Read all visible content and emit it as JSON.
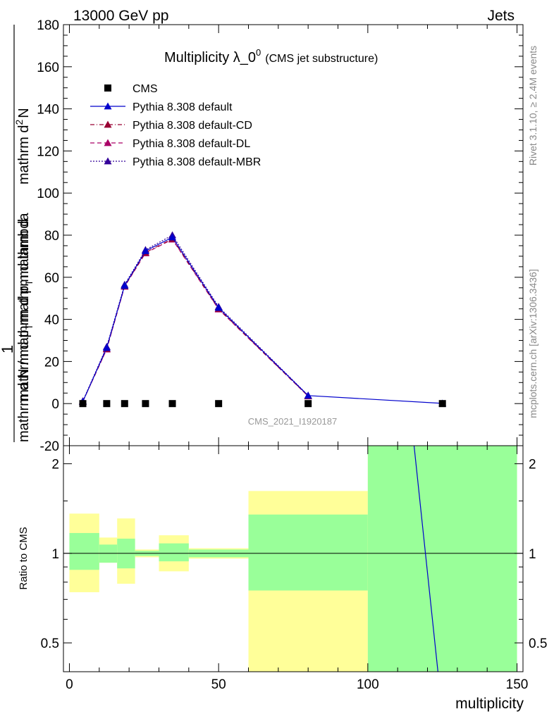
{
  "header": {
    "left": "13000 GeV pp",
    "right": "Jets"
  },
  "side_labels": {
    "rivet": "Rivet 3.1.10, ≥ 2.4M events",
    "mcplots": "mcplots.cern.ch [arXiv:1306.3436]"
  },
  "analysis_id": "CMS_2021_I1920187",
  "chart_data": [
    {
      "type": "line",
      "title_main": "Multiplicity λ_0",
      "title_sup": "0",
      "title_sub": "(CMS jet substructure)",
      "ylabel_parts": {
        "one": "1",
        "denominator": "mathrm d N / mathrm d p",
        "denominator_sub": "T",
        "denominator_tail": "mathrm d",
        "numerator": "mathrm d",
        "numerator_sup": "2",
        "numerator_tail": "N",
        "lower": "mathrm d p",
        "lower_sub": "T",
        "lower_tail": "mathrm d lambda"
      },
      "xlim": [
        -2,
        152
      ],
      "ylim": [
        -20,
        180
      ],
      "yticks": [
        -20,
        0,
        20,
        40,
        60,
        80,
        100,
        120,
        140,
        160,
        180
      ],
      "grid": false,
      "legend_position": "top-left",
      "series": [
        {
          "name": "CMS",
          "marker": "square",
          "color": "#000000",
          "x": [
            4.5,
            12.5,
            18.5,
            25.5,
            34.5,
            50,
            80,
            125
          ],
          "y": [
            0,
            0,
            0,
            0,
            0,
            0,
            0,
            0
          ]
        },
        {
          "name": "Pythia 8.308 default",
          "marker": "triangle",
          "color": "#0000cc",
          "dash": "",
          "x": [
            4.5,
            12.5,
            18.5,
            25.5,
            34.5,
            50,
            80,
            125
          ],
          "y": [
            1.0,
            26.5,
            56.0,
            72.5,
            79.0,
            45.5,
            3.8,
            0.1
          ]
        },
        {
          "name": "Pythia 8.308 default-CD",
          "marker": "triangle",
          "color": "#990033",
          "dash": "6,3,1,3",
          "x": [
            4.5,
            12.5,
            18.5,
            25.5,
            34.5,
            50,
            80
          ],
          "y": [
            1.0,
            26.0,
            55.8,
            71.8,
            78.3,
            45.0,
            3.6
          ]
        },
        {
          "name": "Pythia 8.308 default-DL",
          "marker": "triangle",
          "color": "#aa0066",
          "dash": "6,4",
          "x": [
            4.5,
            12.5,
            18.5,
            25.5,
            34.5,
            50,
            80
          ],
          "y": [
            1.0,
            25.8,
            55.6,
            71.5,
            78.0,
            44.8,
            3.5
          ]
        },
        {
          "name": "Pythia 8.308 default-MBR",
          "marker": "triangle",
          "color": "#330099",
          "dash": "2,2",
          "x": [
            4.5,
            12.5,
            18.5,
            25.5,
            34.5,
            50,
            80
          ],
          "y": [
            1.2,
            27.0,
            56.5,
            73.0,
            80.0,
            46.0,
            3.9
          ]
        }
      ]
    },
    {
      "type": "area",
      "ylabel": "Ratio to CMS",
      "xlabel": "multiplicity",
      "xlim": [
        -2,
        152
      ],
      "ylim": [
        0.4,
        2.3
      ],
      "log_y": true,
      "xticks": [
        0,
        50,
        100,
        150
      ],
      "yticks": [
        0.5,
        1,
        2
      ],
      "yticks_labels": [
        "0.5",
        "1",
        "2"
      ],
      "colors": {
        "inner_band": "#99ff99",
        "outer_band": "#ffff99"
      },
      "bins": [
        {
          "x0": 0,
          "x1": 10,
          "green": [
            0.88,
            1.17
          ],
          "yellow": [
            0.74,
            1.36
          ]
        },
        {
          "x0": 10,
          "x1": 16,
          "green": [
            0.93,
            1.07
          ],
          "yellow": [
            0.93,
            1.13
          ]
        },
        {
          "x0": 16,
          "x1": 22,
          "green": [
            0.89,
            1.12
          ],
          "yellow": [
            0.79,
            1.31
          ]
        },
        {
          "x0": 22,
          "x1": 30,
          "green": [
            0.98,
            1.02
          ],
          "yellow": [
            0.97,
            1.03
          ]
        },
        {
          "x0": 30,
          "x1": 40,
          "green": [
            0.94,
            1.08
          ],
          "yellow": [
            0.87,
            1.15
          ]
        },
        {
          "x0": 40,
          "x1": 60,
          "green": [
            0.97,
            1.03
          ],
          "yellow": [
            0.96,
            1.04
          ]
        },
        {
          "x0": 60,
          "x1": 100,
          "green": [
            0.75,
            1.35
          ],
          "yellow": [
            0.4,
            1.62
          ]
        },
        {
          "x0": 100,
          "x1": 150,
          "green": [
            0.4,
            2.3
          ],
          "yellow": [
            0.4,
            2.3
          ]
        }
      ],
      "ratio_line": {
        "name": "Pythia 8.308 default",
        "x": [
          115.5,
          123.5
        ],
        "y": [
          2.3,
          0.4
        ],
        "color": "#0000cc"
      }
    }
  ]
}
